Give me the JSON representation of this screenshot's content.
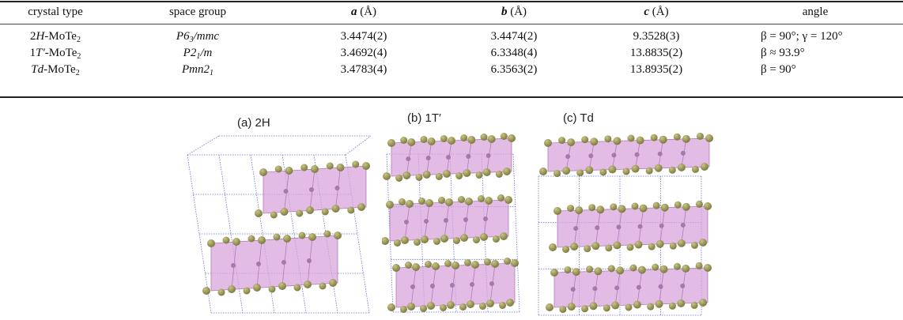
{
  "table": {
    "headers": [
      "crystal type",
      "space group",
      "a",
      "b",
      "c",
      "angle"
    ],
    "unit": "(Å)",
    "rows": [
      {
        "type_pre": "2",
        "type_it": "H",
        "type_post": "-MoTe",
        "type_sub": "2",
        "sg_pre": "P6",
        "sg_sub": "3",
        "sg_post": "/mmc",
        "a": "3.4474(2)",
        "b": "3.4474(2)",
        "c": "9.3528(3)",
        "angle": "β = 90°; γ = 120°"
      },
      {
        "type_pre": "1",
        "type_it": "T′",
        "type_post": "-MoTe",
        "type_sub": "2",
        "sg_pre": "P2",
        "sg_sub": "1",
        "sg_post": "/m",
        "a": "3.4692(4)",
        "b": "6.3348(4)",
        "c": "13.8835(2)",
        "angle": "β ≈ 93.9°"
      },
      {
        "type_pre": "",
        "type_it": "Td",
        "type_post": "-MoTe",
        "type_sub": "2",
        "sg_pre": "Pmn2",
        "sg_sub": "1",
        "sg_post": "",
        "a": "3.4783(4)",
        "b": "6.3563(2)",
        "c": "13.8935(2)",
        "angle": "β = 90°"
      }
    ]
  },
  "figure": {
    "panels": [
      {
        "label": "(a) 2H"
      },
      {
        "label": "(b) 1T′"
      },
      {
        "label": "(c) Td"
      }
    ],
    "colors": {
      "polyhedra": "#d9a6dc",
      "polyhedra_edge": "#b27ab8",
      "atom": "#7d7a3e",
      "atom_highlight": "#c9c487",
      "cell": "#6f6fd8",
      "mo_atom": "#a47aa8"
    }
  }
}
